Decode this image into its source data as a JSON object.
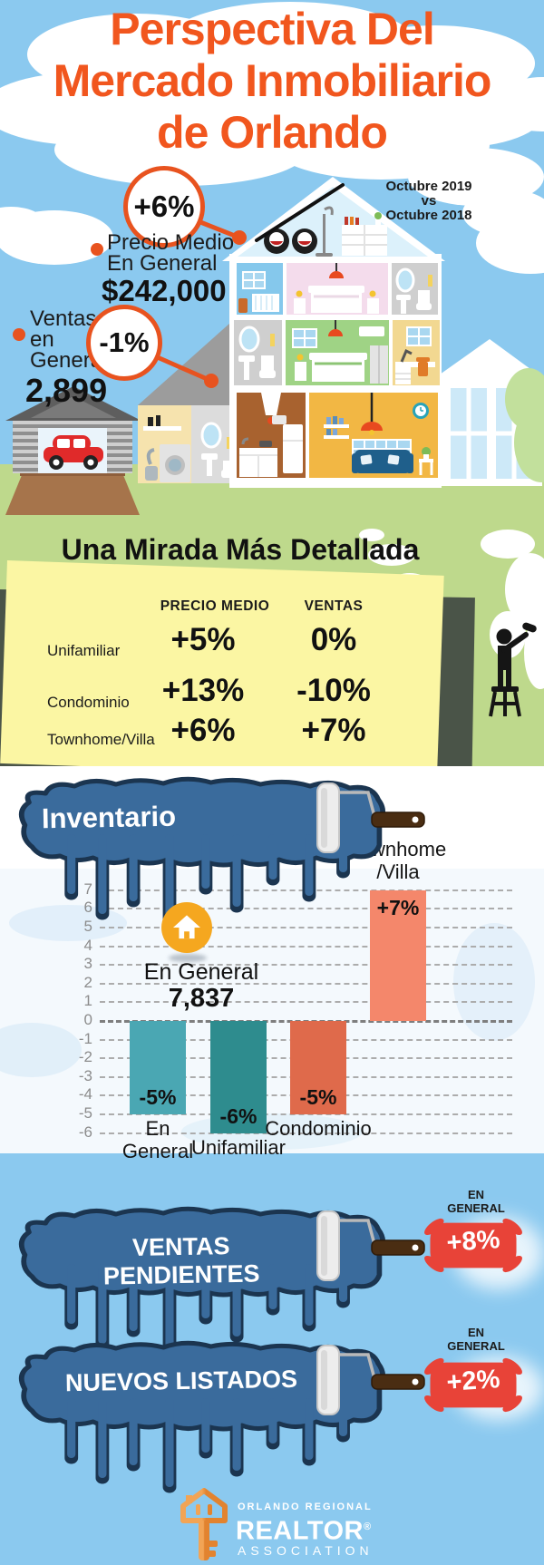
{
  "title": {
    "lines": [
      "Perspectiva Del",
      "Mercado Inmobiliario",
      "de Orlando"
    ]
  },
  "period": {
    "lines": [
      "Octubre 2019",
      "vs",
      "Octubre 2018"
    ]
  },
  "hero": {
    "price": {
      "pct": "+6%",
      "label": [
        "Precio Medio",
        "En General"
      ],
      "value": "$242,000"
    },
    "sales": {
      "pct": "-1%",
      "label": [
        "Ventas",
        "en",
        "General"
      ],
      "value": "2,899"
    }
  },
  "detail": {
    "title": "Una Mirada Más Detallada",
    "columns": [
      "PRECIO MEDIO",
      "VENTAS"
    ],
    "rows": [
      {
        "label": "Unifamiliar",
        "precio_medio": "+5%",
        "ventas": "0%"
      },
      {
        "label": "Condominio",
        "precio_medio": "+13%",
        "ventas": "-10%"
      },
      {
        "label": "Townhome/Villa",
        "precio_medio": "+6%",
        "ventas": "+7%"
      }
    ]
  },
  "inventory": {
    "banner": "Inventario",
    "overall_label": "En General",
    "overall_value": "7,837"
  },
  "chart_data": {
    "type": "bar",
    "title": "Inventario",
    "categories": [
      "En General",
      "Unifamiliar",
      "Condominio",
      "Townhome/Villa"
    ],
    "category_display": [
      [
        "En",
        "General"
      ],
      [
        "Unifamiliar"
      ],
      [
        "Condominio"
      ],
      [
        "Townhome",
        "/Villa"
      ]
    ],
    "values": [
      -5,
      -6,
      -5,
      7
    ],
    "value_labels": [
      "-5%",
      "-6%",
      "-5%",
      "+7%"
    ],
    "bar_colors": [
      "#4AA7B3",
      "#2E8C8E",
      "#DF6A4B",
      "#F4876B"
    ],
    "ylim": [
      -6,
      7
    ],
    "yticks": [
      7,
      6,
      5,
      4,
      3,
      2,
      1,
      0,
      -1,
      -2,
      -3,
      -4,
      -5,
      -6
    ],
    "grid": true,
    "annotation": {
      "label": "En General",
      "value": "7,837"
    }
  },
  "pending": {
    "banner": "VENTAS PENDIENTES",
    "badge": {
      "label": [
        "EN",
        "GENERAL"
      ],
      "value": "+8%"
    }
  },
  "listings": {
    "banner": "NUEVOS LISTADOS",
    "badge": {
      "label": [
        "EN",
        "GENERAL"
      ],
      "value": "+2%"
    }
  },
  "footer": {
    "line1": "ORLANDO REGIONAL",
    "line2": "REALTOR",
    "reg": "®",
    "line3": "ASSOCIATION"
  },
  "colors": {
    "sky": "#8BC9EF",
    "grass": "#BED98C",
    "title_orange": "#F1561E",
    "accent_orange": "#E8531F",
    "banner_blue": "#3A6B9C",
    "banner_outline": "#1B3550",
    "note_yellow": "#FBF6A3",
    "splat_red": "#E84338",
    "icon_orange": "#F5A71F",
    "bar_teal": "#4AA7B3",
    "bar_dark_teal": "#2E8C8E",
    "bar_coral": "#DF6A4B",
    "bar_salmon": "#F4876B"
  }
}
